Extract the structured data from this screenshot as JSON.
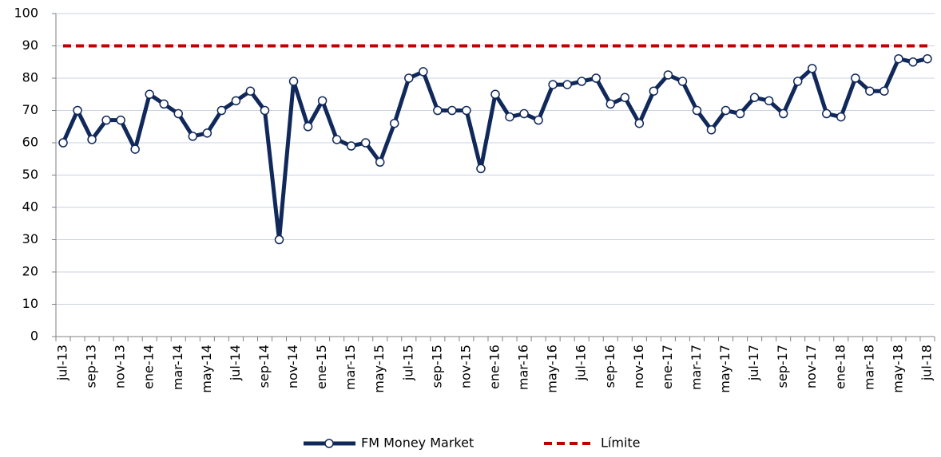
{
  "chart_data": {
    "type": "line",
    "categories": [
      "jul-13",
      null,
      "sep-13",
      null,
      "nov-13",
      null,
      "ene-14",
      null,
      "mar-14",
      null,
      "may-14",
      null,
      "jul-14",
      null,
      "sep-14",
      null,
      "nov-14",
      null,
      "ene-15",
      null,
      "mar-15",
      null,
      "may-15",
      null,
      "jul-15",
      null,
      "sep-15",
      null,
      "nov-15",
      null,
      "ene-16",
      null,
      "mar-16",
      null,
      "may-16",
      null,
      "jul-16",
      null,
      "sep-16",
      null,
      "nov-16",
      null,
      "ene-17",
      null,
      "mar-17",
      null,
      "may-17",
      null,
      "jul-17",
      null,
      "sep-17",
      null,
      "nov-17",
      null,
      "ene-18",
      null,
      "mar-18",
      null,
      "may-18",
      null,
      "jul-18"
    ],
    "series": [
      {
        "name": "FM Money Market",
        "color": "#10285a",
        "values": [
          60,
          70,
          61,
          67,
          67,
          58,
          75,
          72,
          69,
          62,
          63,
          70,
          73,
          76,
          70,
          30,
          79,
          65,
          73,
          61,
          59,
          60,
          54,
          66,
          80,
          82,
          70,
          70,
          70,
          52,
          75,
          68,
          69,
          67,
          78,
          78,
          79,
          80,
          72,
          74,
          66,
          76,
          81,
          79,
          70,
          64,
          70,
          69,
          74,
          73,
          69,
          79,
          83,
          69,
          68,
          80,
          76,
          76,
          86,
          85,
          86
        ]
      },
      {
        "name": "Límite",
        "color": "#c00000",
        "values": [
          90,
          90,
          90,
          90,
          90,
          90,
          90,
          90,
          90,
          90,
          90,
          90,
          90,
          90,
          90,
          90,
          90,
          90,
          90,
          90,
          90,
          90,
          90,
          90,
          90,
          90,
          90,
          90,
          90,
          90,
          90,
          90,
          90,
          90,
          90,
          90,
          90,
          90,
          90,
          90,
          90,
          90,
          90,
          90,
          90,
          90,
          90,
          90,
          90,
          90,
          90,
          90,
          90,
          90,
          90,
          90,
          90,
          90,
          90,
          90,
          90
        ]
      }
    ],
    "ylim": [
      0,
      100
    ],
    "yticks": [
      0,
      10,
      20,
      30,
      40,
      50,
      60,
      70,
      80,
      90,
      100
    ],
    "grid": true
  }
}
